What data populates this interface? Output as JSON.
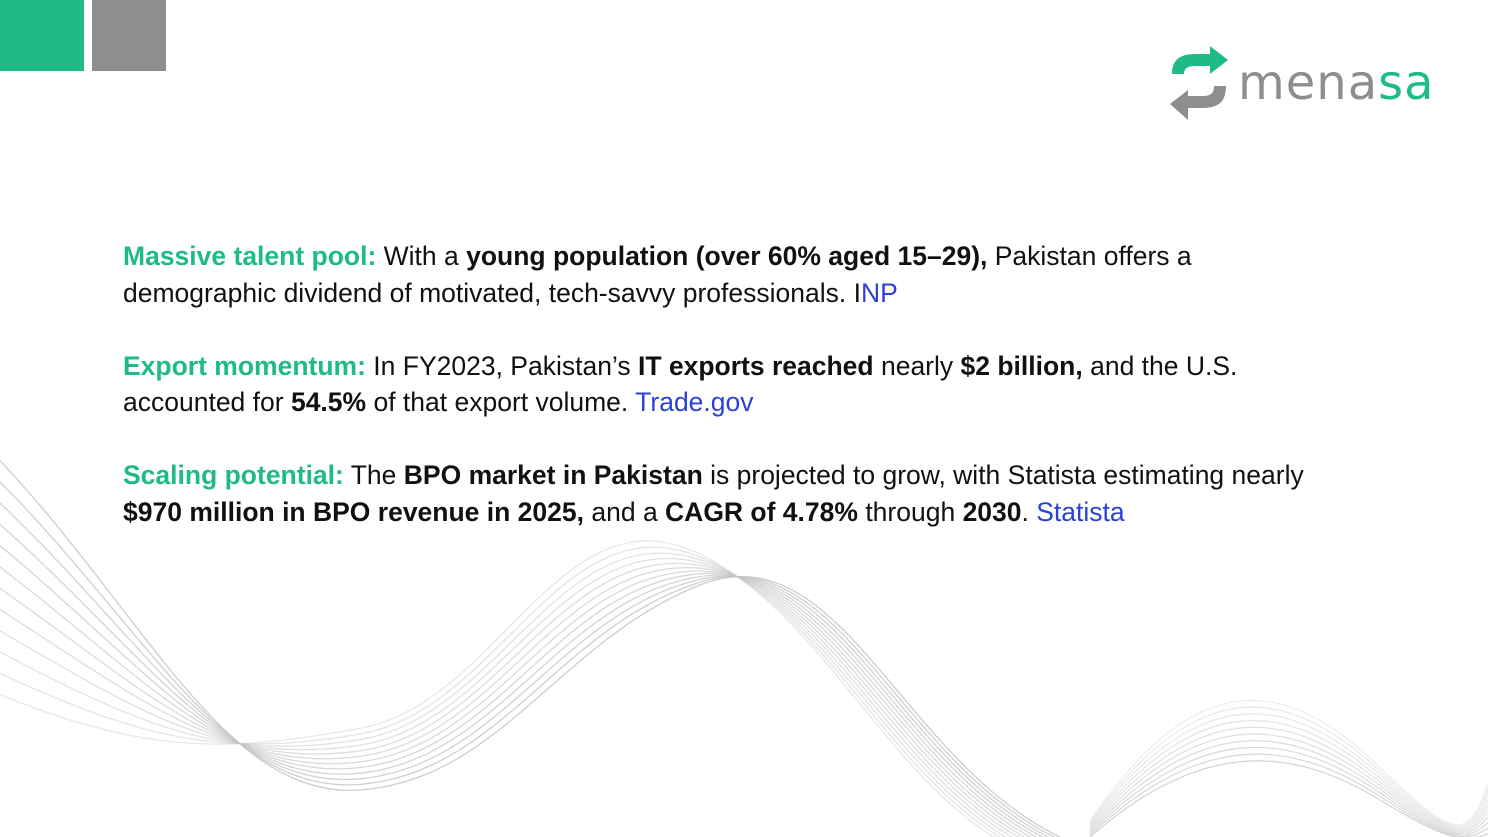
{
  "brand": {
    "name_main": "mena",
    "name_accent": "sa",
    "colors": {
      "green": "#1ebc84",
      "gray": "#8e8e91",
      "link": "#2b40d6",
      "text": "#111111"
    }
  },
  "icons": [
    "recycle-arrows-logo-icon"
  ],
  "paragraphs": [
    {
      "lead": "Massive talent pool:",
      "t1": " With a ",
      "b1": "young population (over 60% aged 15–29),",
      "t2": " Pakistan offers a demographic dividend of motivated, tech-savvy professionals. I",
      "link": "NP"
    },
    {
      "lead": "Export momentum:",
      "t1": " In FY2023, Pakistan’s ",
      "b1": "IT exports reached",
      "t2": " nearly ",
      "b2": "$2 billion,",
      "t3": " and the U.S. accounted for ",
      "b3": "54.5%",
      "t4": " of that export volume. ",
      "link": "Trade.gov"
    },
    {
      "lead": "Scaling potential:",
      "t1": " The ",
      "b1": "BPO market in Pakistan",
      "t2": " is projected to grow, with Statista estimating nearly ",
      "b2": "$970 million in BPO revenue in 2025,",
      "t3": " and a ",
      "b3": "CAGR of 4.78%",
      "t4": " through ",
      "b4": "2030",
      "t5": ". ",
      "link": "Statista"
    }
  ]
}
